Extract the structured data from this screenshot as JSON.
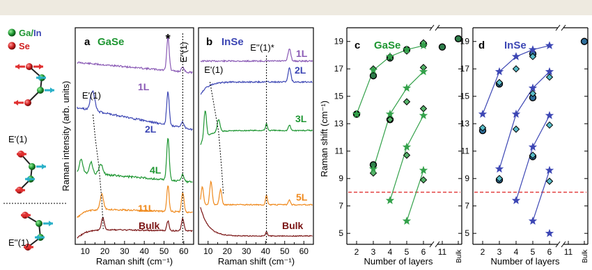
{
  "legend": {
    "ga_in_pre": "Ga/",
    "ga_in_post": "In",
    "se": "Se",
    "mode_e1": "E'(1)",
    "mode_e2": "E''(1)"
  },
  "colors": {
    "l1": "#8a5ab5",
    "l2": "#3c46b4",
    "l3": "#1e9632",
    "l4": "#1e9632",
    "l5": "#ef8a1e",
    "l11": "#ef8a1e",
    "bulk": "#7a1414",
    "gase": "#1e9632",
    "inse": "#3c46b4",
    "star": "#33a14a",
    "diamond": "#56b46a",
    "diamond_inse": "#58bcc8",
    "circle_fill": "#2e7d4a",
    "circle_fill_inse": "#2f6f9c",
    "red_line": "#e03030",
    "ga_atom": "#1e9632",
    "se_atom": "#d02020",
    "arrow_red": "#e03030",
    "arrow_cyan": "#2ab0c8"
  },
  "chart_data": [
    {
      "panel": "a",
      "type": "line",
      "title": "GaSe",
      "xlabel": "Raman shift (cm⁻¹)",
      "ylabel": "Raman intensity (arb. units)",
      "xlim": [
        5,
        65
      ],
      "xticks": [
        10,
        20,
        30,
        40,
        50,
        60
      ],
      "series": [
        {
          "name": "1L"
        },
        {
          "name": "2L"
        },
        {
          "name": "4L"
        },
        {
          "name": "11L"
        },
        {
          "name": "Bulk"
        }
      ],
      "annotations": [
        "*",
        "E''(1)",
        "E'(1)"
      ]
    },
    {
      "panel": "b",
      "type": "line",
      "title": "InSe",
      "xlabel": "Raman shift (cm⁻¹)",
      "xlim": [
        5,
        65
      ],
      "xticks": [
        10,
        20,
        30,
        40,
        50,
        60
      ],
      "series": [
        {
          "name": "1L"
        },
        {
          "name": "2L"
        },
        {
          "name": "3L"
        },
        {
          "name": "5L"
        },
        {
          "name": "Bulk"
        }
      ],
      "annotations": [
        "E''(1)*",
        "E'(1)"
      ]
    },
    {
      "panel": "c",
      "type": "scatter",
      "title": "GaSe",
      "xlabel": "Number of layers",
      "ylabel": "Raman shift (cm⁻¹)",
      "ylim": [
        4.2,
        20
      ],
      "yticks": [
        5,
        7,
        9,
        11,
        13,
        15,
        17,
        19
      ],
      "xtick_labels": [
        "2",
        "3",
        "4",
        "5",
        "6",
        "11",
        "Bulk"
      ],
      "threshold_y": 8,
      "star_branches": [
        [
          [
            2,
            13.7
          ],
          [
            3,
            16.9
          ],
          [
            4,
            17.9
          ],
          [
            5,
            18.4
          ],
          [
            6,
            18.7
          ]
        ],
        [
          [
            3,
            9.7
          ],
          [
            4,
            13.7
          ],
          [
            5,
            15.6
          ],
          [
            6,
            16.8
          ]
        ],
        [
          [
            4,
            7.4
          ],
          [
            5,
            11.3
          ],
          [
            6,
            13.6
          ]
        ],
        [
          [
            5,
            5.9
          ],
          [
            6,
            9.6
          ]
        ]
      ],
      "diamonds": [
        [
          2,
          13.7
        ],
        [
          3,
          17.0
        ],
        [
          3,
          9.4
        ],
        [
          4,
          17.9
        ],
        [
          4,
          13.3
        ],
        [
          5,
          18.3
        ],
        [
          5,
          14.6
        ],
        [
          5,
          10.7
        ],
        [
          6,
          18.9
        ],
        [
          6,
          17.1
        ],
        [
          6,
          14.1
        ],
        [
          6,
          8.9
        ]
      ],
      "circles": [
        [
          2,
          13.7
        ],
        [
          3,
          16.5
        ],
        [
          3,
          10.0
        ],
        [
          4,
          17.8
        ],
        [
          4,
          13.3
        ],
        [
          5,
          18.4
        ],
        [
          6,
          18.8
        ],
        [
          11,
          18.6
        ],
        [
          "Bulk",
          19.2
        ]
      ]
    },
    {
      "panel": "d",
      "type": "scatter",
      "title": "InSe",
      "xlabel": "Number of layers",
      "ylim": [
        4.2,
        20
      ],
      "yticks": [
        5,
        7,
        9,
        11,
        13,
        15,
        17,
        19
      ],
      "xtick_labels": [
        "2",
        "3",
        "4",
        "5",
        "6",
        "11",
        "Bulk"
      ],
      "threshold_y": 8,
      "star_branches": [
        [
          [
            2,
            13.7
          ],
          [
            3,
            16.8
          ],
          [
            4,
            17.9
          ],
          [
            5,
            18.4
          ],
          [
            6,
            18.7
          ]
        ],
        [
          [
            3,
            9.7
          ],
          [
            4,
            13.7
          ],
          [
            5,
            15.6
          ],
          [
            6,
            16.8
          ]
        ],
        [
          [
            4,
            7.4
          ],
          [
            5,
            11.3
          ],
          [
            6,
            13.6
          ]
        ],
        [
          [
            5,
            5.9
          ],
          [
            6,
            9.6
          ]
        ]
      ],
      "stars_unconnected": [
        [
          6,
          5.0
        ]
      ],
      "diamonds": [
        [
          2,
          12.7
        ],
        [
          3,
          16.0
        ],
        [
          3,
          9.0
        ],
        [
          4,
          17.0
        ],
        [
          4,
          12.6
        ],
        [
          5,
          17.9
        ],
        [
          5,
          15.2
        ],
        [
          5,
          10.7
        ],
        [
          6,
          16.4
        ],
        [
          6,
          12.9
        ],
        [
          6,
          8.8
        ]
      ],
      "circles": [
        [
          2,
          12.5
        ],
        [
          3,
          15.9
        ],
        [
          3,
          8.9
        ],
        [
          5,
          18.1
        ],
        [
          5,
          14.9
        ],
        [
          5,
          10.6
        ],
        [
          "Bulk",
          19.0
        ]
      ]
    }
  ]
}
